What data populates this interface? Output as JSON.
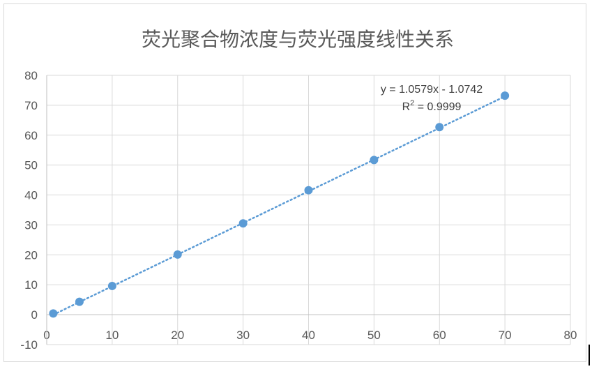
{
  "chart_data": {
    "type": "scatter",
    "title": "荧光聚合物浓度与荧光强度线性关系",
    "xlabel": "",
    "ylabel": "",
    "xlim": [
      0,
      80
    ],
    "ylim": [
      -10,
      80
    ],
    "x_ticks": [
      0,
      10,
      20,
      30,
      40,
      50,
      60,
      70,
      80
    ],
    "y_ticks": [
      -10,
      0,
      10,
      20,
      30,
      40,
      50,
      60,
      70,
      80
    ],
    "grid": true,
    "legend": "none",
    "series": [
      {
        "x": [
          1,
          5,
          10,
          20,
          30,
          40,
          50,
          60,
          70
        ],
        "y": [
          0.4,
          4.3,
          9.6,
          20.1,
          30.5,
          41.6,
          51.7,
          62.7,
          73.2
        ],
        "color": "#5b9bd5"
      }
    ],
    "trendline": {
      "type": "linear",
      "slope": 1.0579,
      "intercept": -1.0742,
      "x_range": [
        1,
        70
      ],
      "style": "dotted",
      "color": "#5b9bd5",
      "equation_label": "y = 1.0579x - 1.0742",
      "r2_prefix": "R",
      "r2_superscript": "2",
      "r2_suffix": " = 0.9999"
    }
  }
}
